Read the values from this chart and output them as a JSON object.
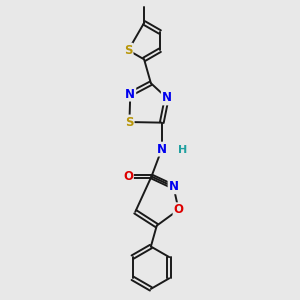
{
  "background_color": "#e8e8e8",
  "bond_color": "#1a1a1a",
  "atom_colors": {
    "S": "#b8960a",
    "N": "#0000ee",
    "O": "#dd0000",
    "C": "#1a1a1a",
    "H": "#20a0a0"
  },
  "bond_width": 1.4,
  "figsize": [
    3.0,
    3.0
  ],
  "dpi": 100
}
